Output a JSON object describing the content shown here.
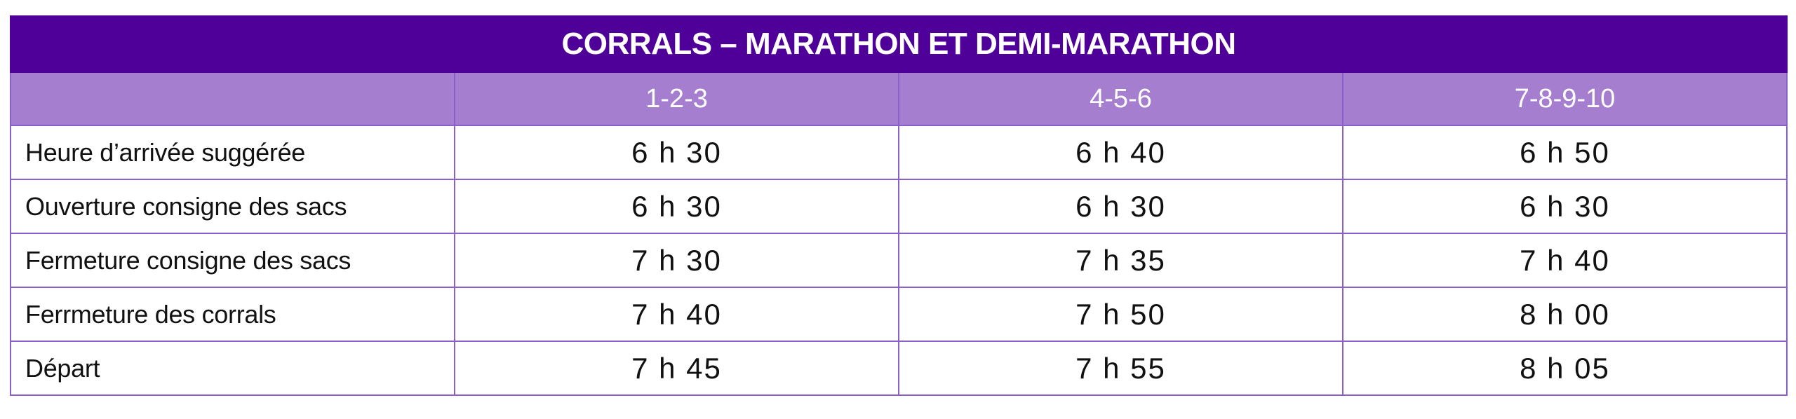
{
  "table": {
    "title": "CORRALS – MARATHON ET DEMI-MARATHON",
    "columns": [
      "",
      "1-2-3",
      "4-5-6",
      "7-8-9-10"
    ],
    "rows": [
      {
        "label": "Heure d’arrivée suggérée",
        "values": [
          "6 h 30",
          "6 h 40",
          "6 h 50"
        ]
      },
      {
        "label": "Ouverture consigne des sacs",
        "values": [
          "6 h 30",
          "6 h 30",
          "6 h 30"
        ]
      },
      {
        "label": "Fermeture consigne des sacs",
        "values": [
          "7 h 30",
          "7 h 35",
          "7 h 40"
        ]
      },
      {
        "label": "Ferrmeture des corrals",
        "values": [
          "7 h 40",
          "7 h 50",
          "8 h 00"
        ]
      },
      {
        "label": "Départ",
        "values": [
          "7 h 45",
          "7 h 55",
          "8 h 05"
        ]
      }
    ]
  },
  "colors": {
    "title_bg": "#4e0099",
    "header_bg": "#a67ed0",
    "border": "#8b5fc9"
  }
}
